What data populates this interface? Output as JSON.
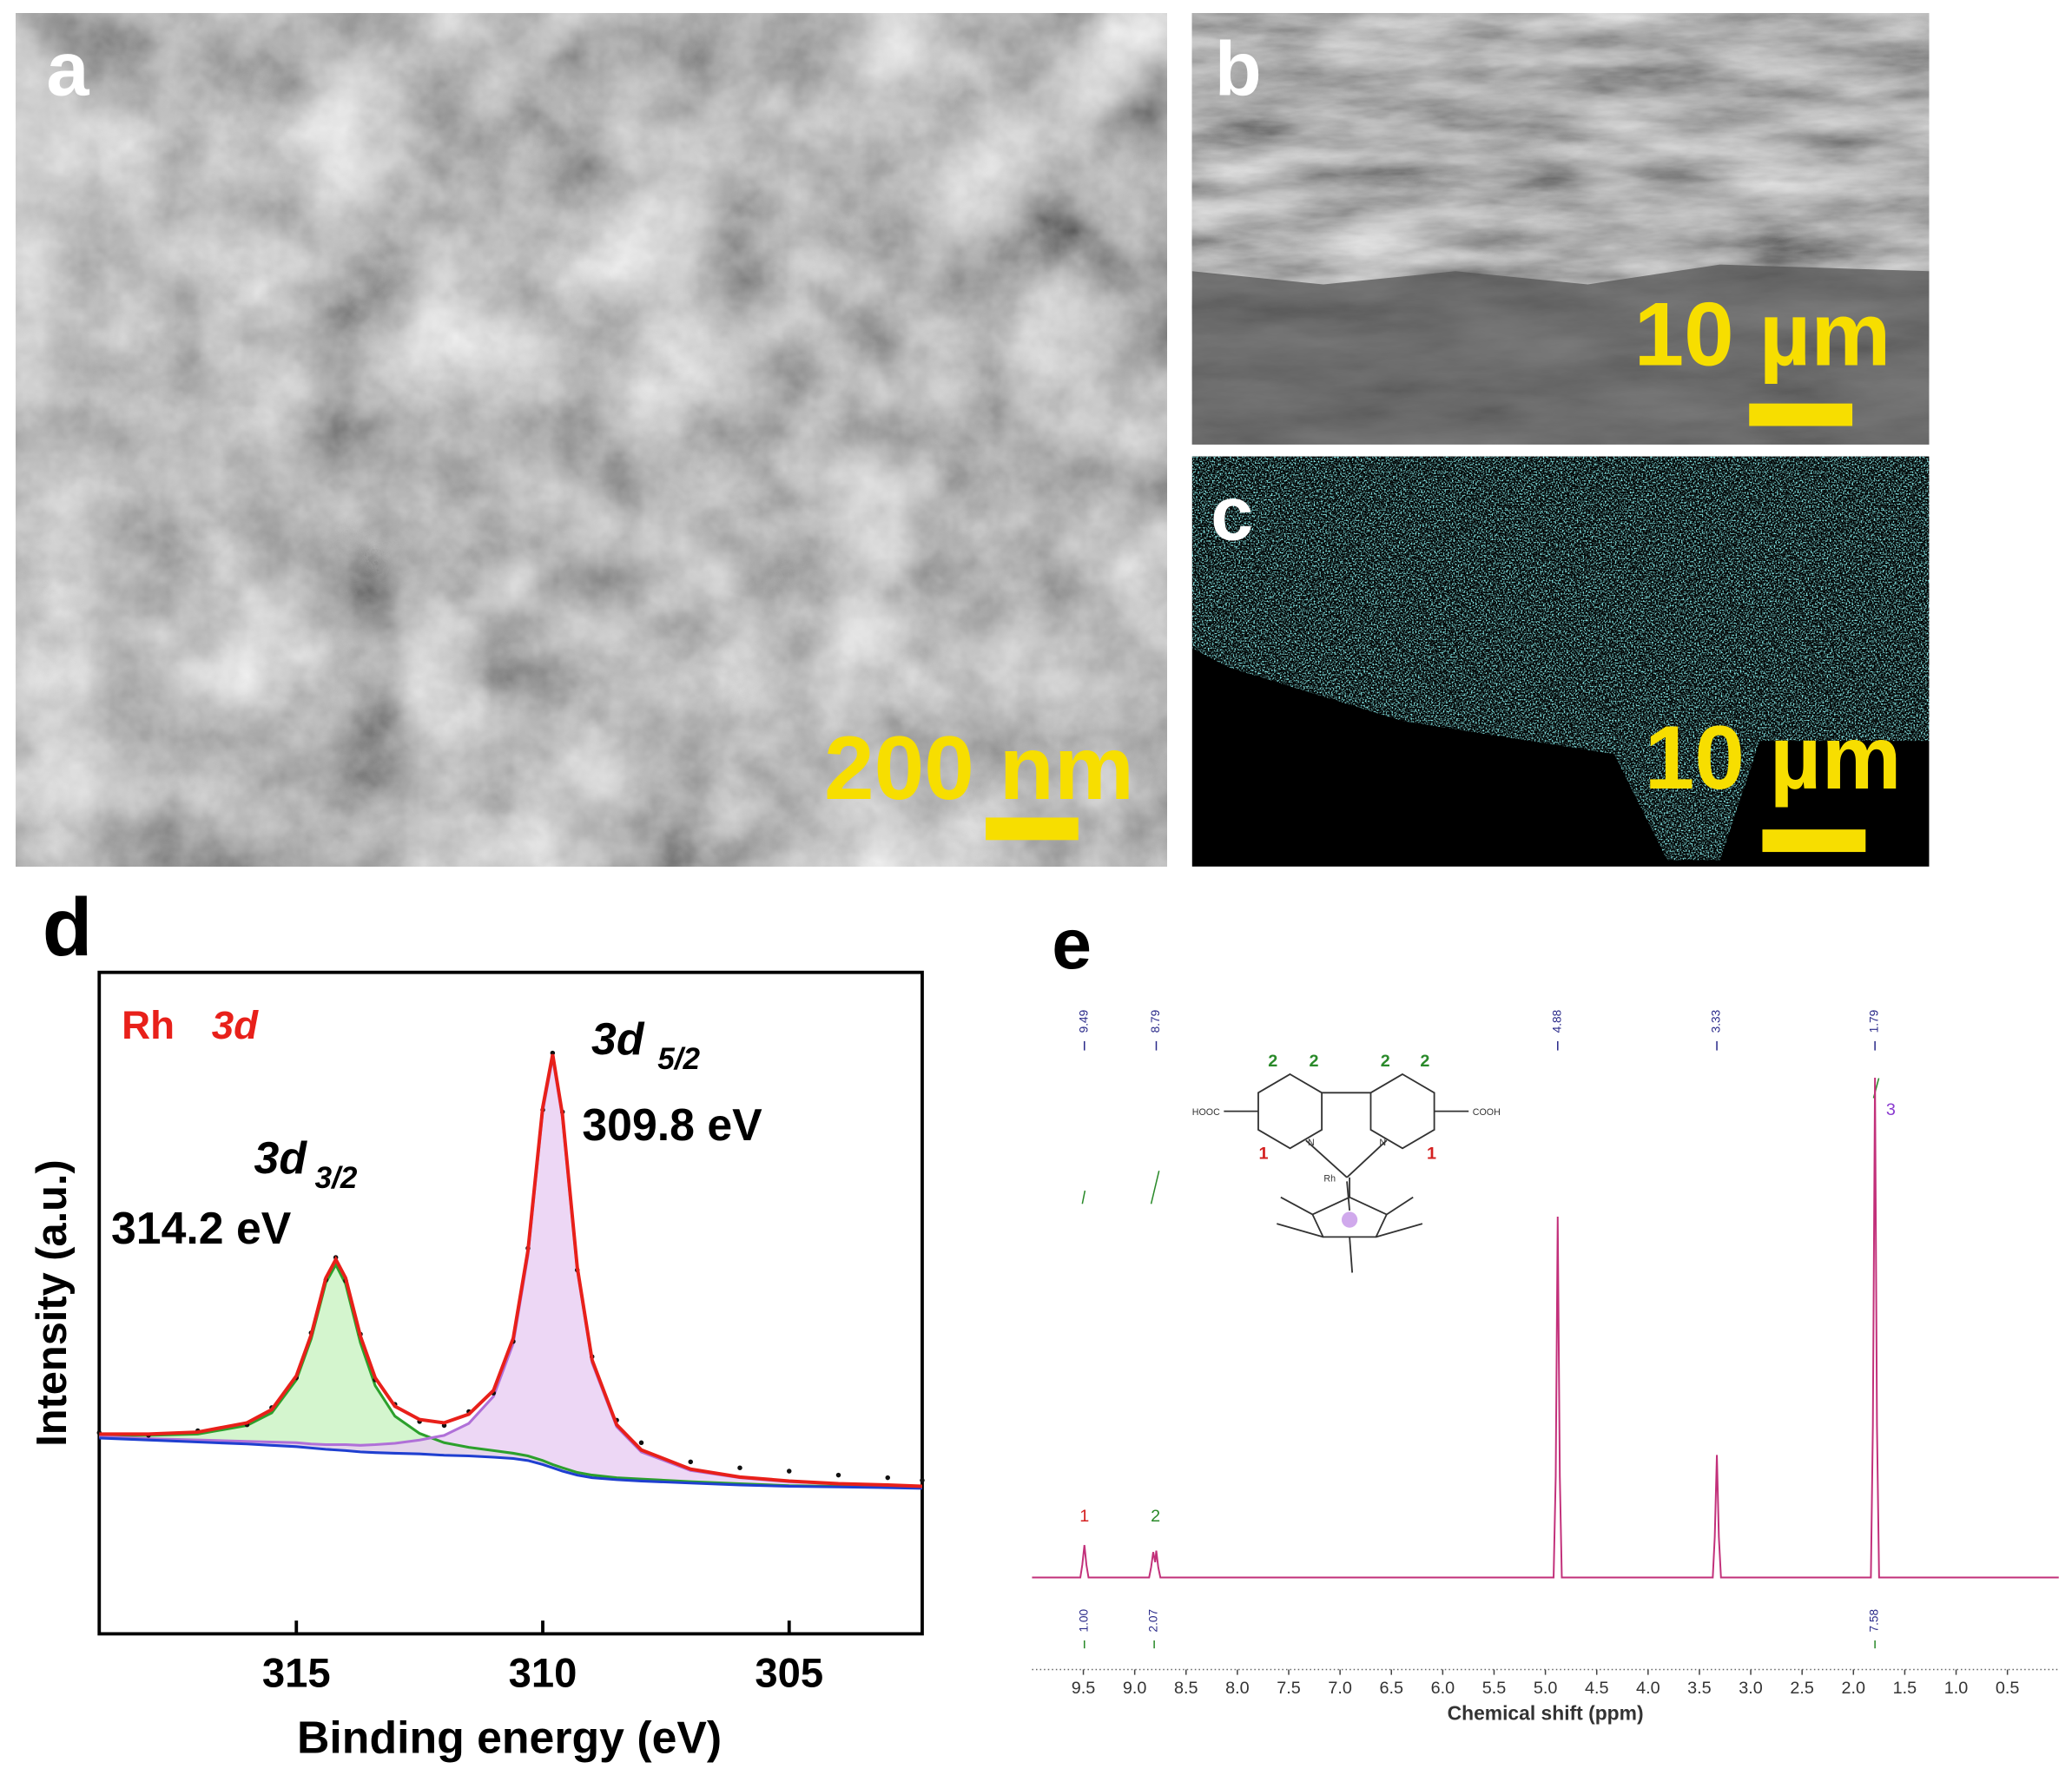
{
  "panels": [
    {
      "label": "a",
      "scale_bar": "200 nm"
    },
    {
      "label": "b",
      "scale_bar": "10 µm"
    },
    {
      "label": "c",
      "scale_bar": "10 µm"
    }
  ],
  "chart_data": [
    {
      "type": "xps",
      "label": "d",
      "xlabel": "Binding energy (eV)",
      "ylabel": "Intensity (a.u.)",
      "annotations": {
        "element": "Rh",
        "element_orbital": "3d",
        "peak1_orbital": "3d",
        "peak1_sub": "3/2",
        "peak1_energy": "314.2 eV",
        "peak2_orbital": "3d",
        "peak2_sub": "5/2",
        "peak2_energy": "309.8 eV"
      },
      "annotation_color": "#e8201a",
      "x": [
        319,
        318,
        317,
        316,
        315.5,
        315,
        314.7,
        314.4,
        314.2,
        314,
        313.7,
        313.4,
        313,
        312.5,
        312,
        311.5,
        311,
        310.6,
        310.3,
        310,
        309.8,
        309.6,
        309.3,
        309,
        308.5,
        308,
        307,
        306,
        305,
        304,
        303,
        302.3
      ],
      "series": [
        {
          "style": "area",
          "color": "#2ca02c",
          "fill": "#c9f2c2",
          "values": [
            30.0,
            30.0,
            30.2,
            31.5,
            33.4,
            38.4,
            44.6,
            53.1,
            55.8,
            52.9,
            44.0,
            37.5,
            32.9,
            30.3,
            28.9,
            28.2,
            27.7,
            27.3,
            26.9,
            26.2,
            25.6,
            25.1,
            24.4,
            24.0,
            23.6,
            23.4,
            23.0,
            22.7,
            22.4,
            22.3,
            22.2,
            22.1
          ]
        },
        {
          "style": "area",
          "color": "#b070d8",
          "fill": "#e8cdf2",
          "values": [
            29.8,
            29.5,
            29.3,
            29.1,
            29.0,
            28.9,
            28.7,
            28.6,
            28.6,
            28.6,
            28.5,
            28.6,
            28.8,
            29.3,
            30.0,
            31.8,
            35.9,
            43.9,
            57.2,
            79.0,
            87.1,
            78.0,
            55.0,
            41.0,
            31.3,
            27.5,
            24.7,
            23.6,
            23.0,
            22.7,
            22.4,
            22.3
          ]
        },
        {
          "style": "baseline",
          "color": "#1f3fd0",
          "values": [
            29.6,
            29.3,
            29.0,
            28.7,
            28.5,
            28.3,
            28.1,
            27.9,
            27.8,
            27.7,
            27.5,
            27.4,
            27.3,
            27.2,
            27.0,
            26.9,
            26.7,
            26.5,
            26.2,
            25.6,
            25.1,
            24.6,
            24.0,
            23.6,
            23.3,
            23.1,
            22.8,
            22.5,
            22.3,
            22.2,
            22.1,
            22.0
          ]
        },
        {
          "style": "dots",
          "color": "#111111",
          "values": [
            30.4,
            30.0,
            30.7,
            31.6,
            34.2,
            38.7,
            45.5,
            53.5,
            56.9,
            53.4,
            45.3,
            38.4,
            34.7,
            32.1,
            31.5,
            33.6,
            36.4,
            44.2,
            58.3,
            79.2,
            87.8,
            78.9,
            55.0,
            41.9,
            32.3,
            28.9,
            26.0,
            25.1,
            24.6,
            24.0,
            23.6,
            23.2
          ]
        },
        {
          "style": "line",
          "color": "#e8201a",
          "values": [
            30.2,
            30.2,
            30.5,
            31.9,
            33.9,
            39.0,
            45.2,
            53.8,
            56.6,
            53.8,
            45.0,
            38.7,
            34.4,
            32.4,
            31.9,
            33.2,
            36.8,
            44.7,
            57.9,
            79.6,
            87.6,
            78.5,
            55.4,
            41.4,
            31.6,
            27.8,
            24.9,
            23.7,
            23.1,
            22.7,
            22.5,
            22.3
          ]
        }
      ],
      "xlim": [
        319,
        302.3
      ],
      "xticks": [
        315,
        310,
        305
      ],
      "ylim": [
        0,
        100
      ]
    },
    {
      "type": "nmr",
      "label": "e",
      "xlabel": "Chemical shift (ppm)",
      "color": "#c2307a",
      "x": [
        10,
        9.53,
        9.51,
        9.49,
        9.47,
        9.45,
        8.86,
        8.84,
        8.82,
        8.8,
        8.79,
        8.77,
        8.75,
        4.92,
        4.9,
        4.88,
        4.86,
        4.84,
        3.37,
        3.35,
        3.33,
        3.31,
        3.29,
        1.83,
        1.81,
        1.79,
        1.77,
        1.75,
        0
      ],
      "values": [
        0,
        0,
        2.5,
        6.4,
        2.5,
        0,
        0,
        2.0,
        5.0,
        3.0,
        5.3,
        2.0,
        0,
        0,
        20,
        71.3,
        20,
        0,
        0,
        8,
        24.2,
        8,
        0,
        0,
        30,
        98.8,
        30,
        0,
        0
      ],
      "xlim": [
        10,
        0
      ],
      "xticks": [
        9.5,
        {
          "value": 9,
          "label": "9.0"
        },
        8.5,
        {
          "value": 8,
          "label": "8.0"
        },
        7.5,
        {
          "value": 7,
          "label": "7.0"
        },
        6.5,
        {
          "value": 6,
          "label": "6.0"
        },
        5.5,
        {
          "value": 5,
          "label": "5.0"
        },
        4.5,
        {
          "value": 4,
          "label": "4.0"
        },
        3.5,
        {
          "value": 3,
          "label": "3.0"
        },
        2.5,
        {
          "value": 2,
          "label": "2.0"
        },
        1.5,
        {
          "value": 1,
          "label": "1.0"
        },
        0.5
      ],
      "ylim": [
        -2,
        100
      ],
      "peaks": [
        9.49,
        8.79,
        4.88,
        3.33,
        1.79
      ],
      "peak_label_color": "#2a2a8a",
      "integrals": {
        "x": [
          9.49,
          8.81,
          1.79
        ],
        "values": [
          1,
          2.07,
          7.58
        ],
        "value_labels": [
          "1.00",
          "2.07",
          "7.58"
        ]
      },
      "assignments": {
        "x": [
          9.49,
          8.81,
          1.79
        ],
        "labels": [
          "1",
          "2",
          "3"
        ],
        "colors": [
          "#d42020",
          "#2a8a2a",
          "#8a3ad0"
        ]
      },
      "structure": {
        "site_labels": [
          "2",
          "2",
          "2",
          "2",
          "1",
          "1"
        ],
        "site_colors": [
          "#2a8a2a",
          "#2a8a2a",
          "#2a8a2a",
          "#2a8a2a",
          "#d42020",
          "#d42020"
        ],
        "groups": [
          "HOOC",
          "COOH"
        ],
        "atoms": [
          "N",
          "N",
          "Rh"
        ]
      }
    }
  ]
}
